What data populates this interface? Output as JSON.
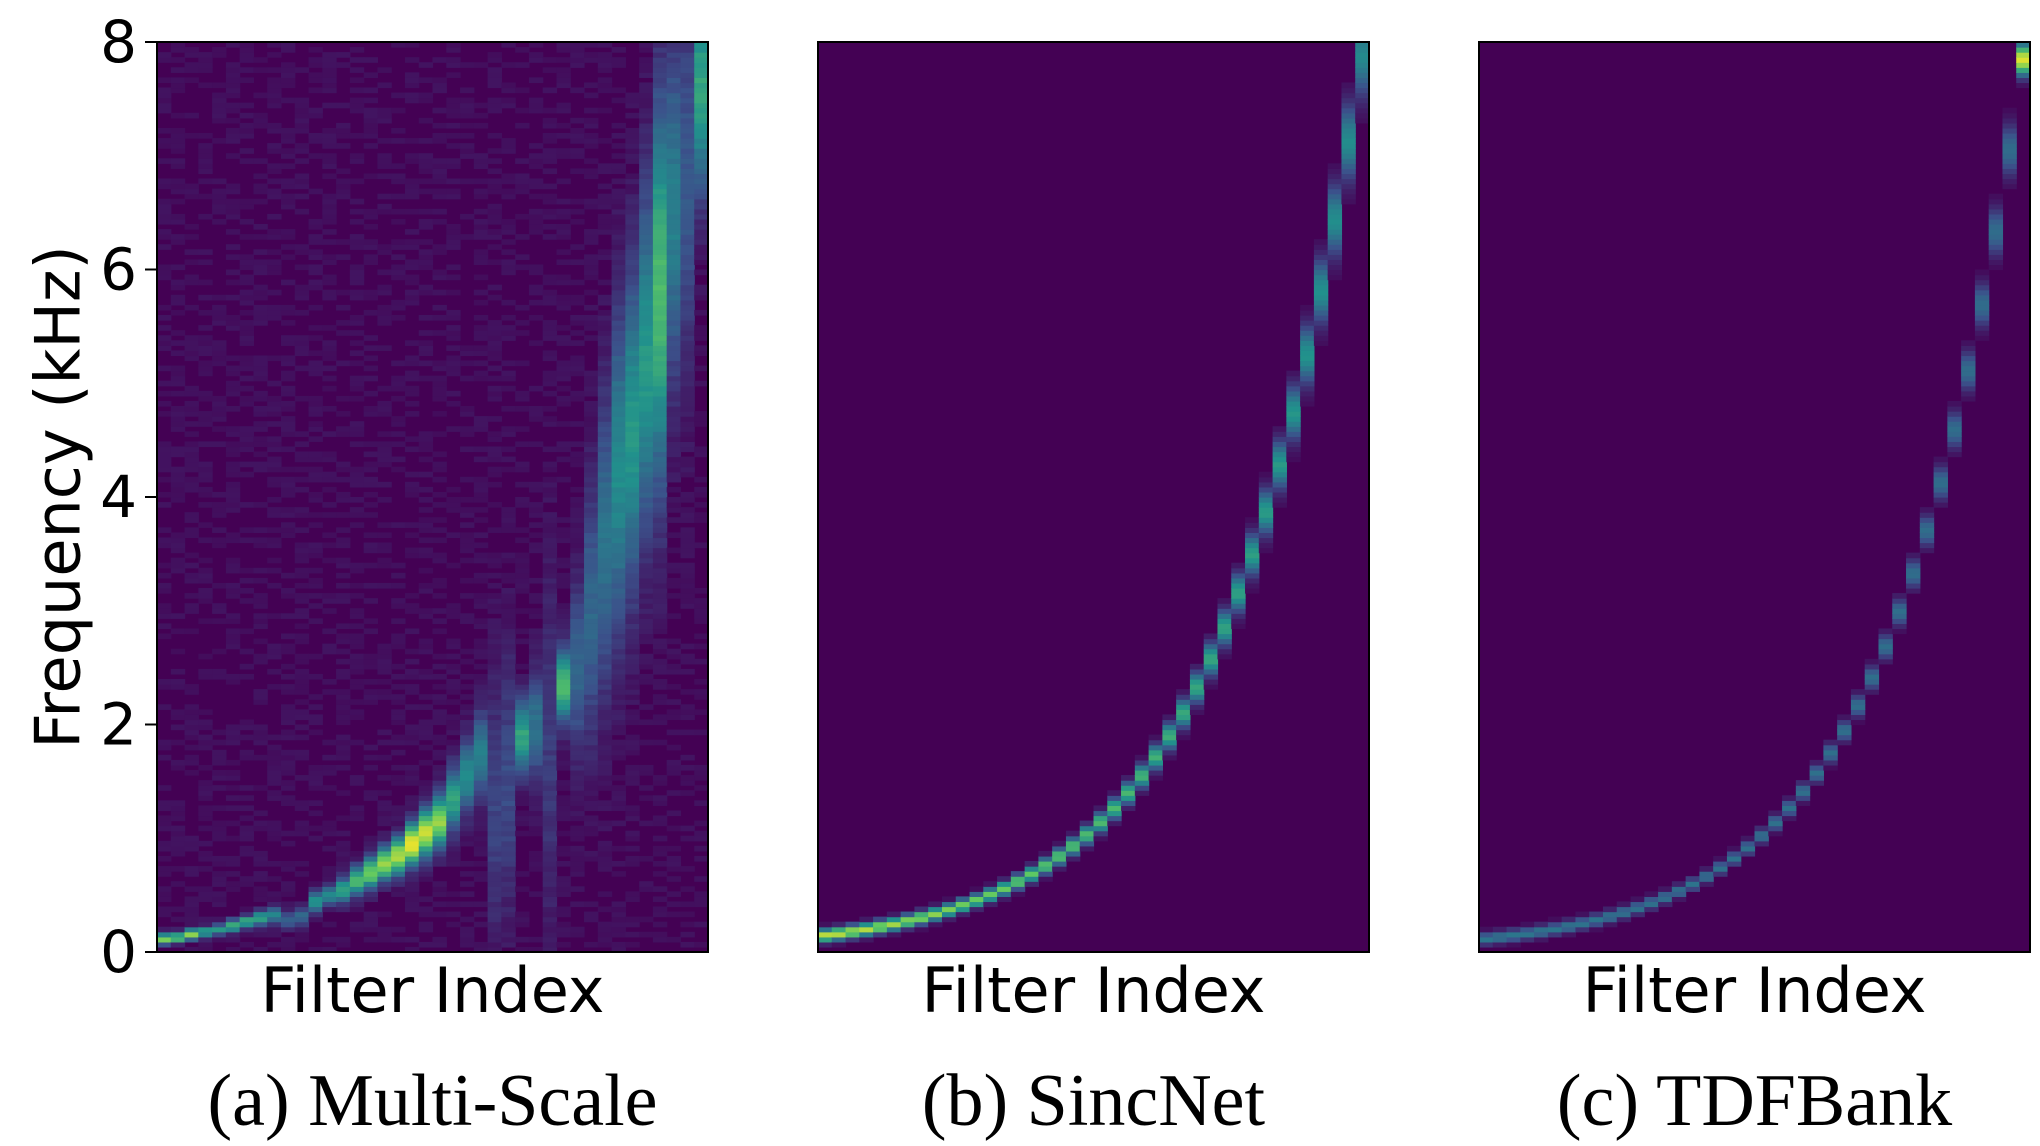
{
  "chart_data": {
    "type": "heatmap",
    "ylabel": "Frequency (kHz)",
    "yticks": [
      0,
      2,
      4,
      6,
      8
    ],
    "ylim": [
      0,
      8
    ],
    "colormap": [
      "#440154",
      "#3b528b",
      "#21918c",
      "#5ec962",
      "#fde725"
    ],
    "background": "#440154",
    "panels": [
      {
        "caption": "(a) Multi-Scale",
        "xlabel": "Filter Index",
        "filters": 40,
        "bands": [
          {
            "i": 0,
            "f": 0.12,
            "w": 0.05,
            "v": 0.8
          },
          {
            "i": 1,
            "f": 0.13,
            "w": 0.05,
            "v": 0.7
          },
          {
            "i": 2,
            "f": 0.16,
            "w": 0.05,
            "v": 0.8
          },
          {
            "i": 3,
            "f": 0.18,
            "w": 0.05,
            "v": 0.55
          },
          {
            "i": 4,
            "f": 0.2,
            "w": 0.05,
            "v": 0.5
          },
          {
            "i": 5,
            "f": 0.23,
            "w": 0.06,
            "v": 0.6
          },
          {
            "i": 6,
            "f": 0.27,
            "w": 0.06,
            "v": 0.6
          },
          {
            "i": 7,
            "f": 0.3,
            "w": 0.07,
            "v": 0.55
          },
          {
            "i": 8,
            "f": 0.33,
            "w": 0.08,
            "v": 0.45
          },
          {
            "i": 9,
            "f": 0.28,
            "w": 0.08,
            "v": 0.3
          },
          {
            "i": 10,
            "f": 0.32,
            "w": 0.1,
            "v": 0.3
          },
          {
            "i": 11,
            "f": 0.45,
            "w": 0.1,
            "v": 0.5
          },
          {
            "i": 12,
            "f": 0.5,
            "w": 0.1,
            "v": 0.45
          },
          {
            "i": 13,
            "f": 0.55,
            "w": 0.12,
            "v": 0.55
          },
          {
            "i": 14,
            "f": 0.63,
            "w": 0.14,
            "v": 0.65
          },
          {
            "i": 15,
            "f": 0.7,
            "w": 0.15,
            "v": 0.75
          },
          {
            "i": 16,
            "f": 0.78,
            "w": 0.16,
            "v": 0.8
          },
          {
            "i": 17,
            "f": 0.85,
            "w": 0.18,
            "v": 0.85
          },
          {
            "i": 18,
            "f": 0.95,
            "w": 0.2,
            "v": 0.95
          },
          {
            "i": 19,
            "f": 1.05,
            "w": 0.22,
            "v": 0.9
          },
          {
            "i": 20,
            "f": 1.15,
            "w": 0.25,
            "v": 0.8
          },
          {
            "i": 21,
            "f": 1.35,
            "w": 0.3,
            "v": 0.55
          },
          {
            "i": 22,
            "f": 1.55,
            "w": 0.35,
            "v": 0.45
          },
          {
            "i": 23,
            "f": 1.75,
            "w": 0.4,
            "v": 0.4
          },
          {
            "i": 24,
            "f": 1.3,
            "w": 1.2,
            "v": 0.18
          },
          {
            "i": 25,
            "f": 1.5,
            "w": 1.2,
            "v": 0.2
          },
          {
            "i": 26,
            "f": 1.9,
            "w": 0.35,
            "v": 0.55
          },
          {
            "i": 27,
            "f": 2.0,
            "w": 0.5,
            "v": 0.35
          },
          {
            "i": 28,
            "f": 1.8,
            "w": 1.6,
            "v": 0.15
          },
          {
            "i": 29,
            "f": 2.35,
            "w": 0.35,
            "v": 0.65
          },
          {
            "i": 30,
            "f": 2.5,
            "w": 0.8,
            "v": 0.3
          },
          {
            "i": 31,
            "f": 3.0,
            "w": 1.2,
            "v": 0.3
          },
          {
            "i": 32,
            "f": 3.6,
            "w": 1.4,
            "v": 0.35
          },
          {
            "i": 33,
            "f": 4.2,
            "w": 1.5,
            "v": 0.45
          },
          {
            "i": 34,
            "f": 4.6,
            "w": 1.5,
            "v": 0.5
          },
          {
            "i": 35,
            "f": 5.2,
            "w": 1.6,
            "v": 0.5
          },
          {
            "i": 36,
            "f": 5.8,
            "w": 1.8,
            "v": 0.65
          },
          {
            "i": 37,
            "f": 6.5,
            "w": 1.6,
            "v": 0.4
          },
          {
            "i": 38,
            "f": 6.8,
            "w": 1.8,
            "v": 0.25
          },
          {
            "i": 39,
            "f": 7.6,
            "w": 1.0,
            "v": 0.55
          }
        ]
      },
      {
        "caption": "(b) SincNet",
        "xlabel": "Filter Index",
        "filters": 40,
        "curve": {
          "start": 0.15,
          "end": 7.9,
          "width_ratio": 0.045,
          "v_start": 0.9,
          "v_end": 0.45
        }
      },
      {
        "caption": "(c) TDFBank",
        "xlabel": "Filter Index",
        "filters": 40,
        "curve": {
          "start": 0.12,
          "end": 7.85,
          "width_ratio": 0.03,
          "v_start": 0.4,
          "v_end": 0.35
        },
        "peak": {
          "i": 39,
          "f": 7.85,
          "w": 0.15,
          "v": 0.95
        }
      }
    ]
  }
}
